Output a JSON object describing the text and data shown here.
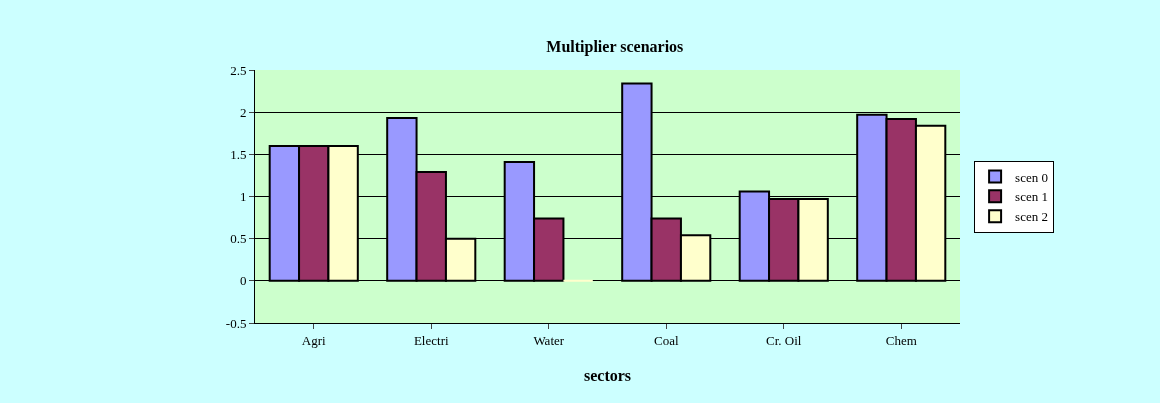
{
  "chart_data": {
    "type": "bar",
    "title": "Multiplier scenarios",
    "xlabel": "sectors",
    "categories": [
      "Agri",
      "Electri",
      "Water",
      "Coal",
      "Cr. Oil",
      "Chem"
    ],
    "series": [
      {
        "name": "scen 0",
        "color": "#9999ff",
        "values": [
          1.6,
          1.93,
          1.41,
          2.34,
          1.06,
          1.97
        ]
      },
      {
        "name": "scen 1",
        "color": "#993366",
        "values": [
          1.6,
          1.29,
          0.74,
          0.74,
          0.97,
          1.92
        ]
      },
      {
        "name": "scen 2",
        "color": "#ffffcc",
        "values": [
          1.6,
          0.5,
          0,
          0.54,
          0.97,
          1.84
        ]
      }
    ],
    "ylim": [
      -0.5,
      2.5
    ],
    "yticks": [
      -0.5,
      0,
      0.5,
      1,
      1.5,
      2,
      2.5
    ],
    "grid": "y",
    "legend": "right"
  }
}
